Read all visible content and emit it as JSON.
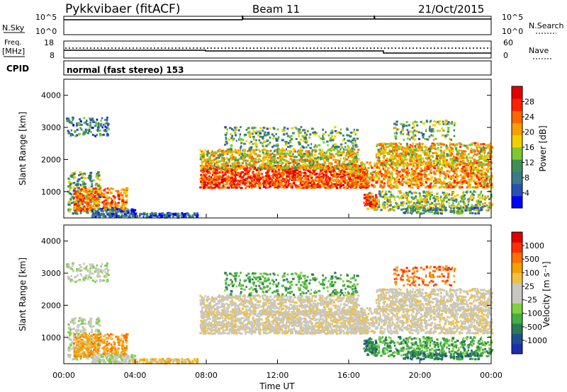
{
  "header": {
    "station": "Pykkvibaer (fitACF)",
    "beam": "Beam 11",
    "date": "21/Oct/2015"
  },
  "status_panels": {
    "nsky": {
      "label": "N.Sky",
      "ticks": [
        "10^5",
        "10^0"
      ],
      "line_value": 0.85
    },
    "nsearch": {
      "label": "N.Search",
      "ticks": [
        "10^5",
        "10^0"
      ]
    },
    "freq": {
      "label_top": "Freq.",
      "label_bottom": "[MHz]",
      "ticks": [
        "18",
        "8"
      ]
    },
    "nave": {
      "label": "Nave",
      "ticks": [
        "60",
        "0"
      ]
    },
    "cpid": {
      "label": "CPID",
      "text": "normal (fast stereo) 153"
    }
  },
  "chart_data": [
    {
      "type": "heatmap",
      "name": "power-panel",
      "xlabel": "",
      "ylabel": "Slant Range [km]",
      "xlim": [
        0,
        24
      ],
      "ylim": [
        180,
        4500
      ],
      "y_ticks": [
        1000,
        2000,
        3000,
        4000
      ],
      "colorbar": {
        "label": "Power [dB]",
        "ticks": [
          "4",
          "8",
          "12",
          "16",
          "20",
          "24",
          "28"
        ],
        "colors": [
          "#0000ff",
          "#2a4fb5",
          "#3a7a8a",
          "#3f8f55",
          "#7ec832",
          "#f0d000",
          "#f5a000",
          "#ff6600",
          "#ff2200",
          "#e00000"
        ]
      }
    },
    {
      "type": "heatmap",
      "name": "velocity-panel",
      "xlabel": "Time UT",
      "ylabel": "Slant Range [km]",
      "xlim": [
        0,
        24
      ],
      "ylim": [
        180,
        4500
      ],
      "x_ticks": [
        "00:00",
        "04:00",
        "08:00",
        "12:00",
        "16:00",
        "20:00",
        "00:00"
      ],
      "y_ticks": [
        1000,
        2000,
        3000,
        4000
      ],
      "colorbar": {
        "label": "Velocity [m s⁻¹]",
        "ticks": [
          "1000",
          "500",
          "100",
          "25",
          "-25",
          "-100",
          "-500",
          "-1000"
        ],
        "colors": [
          "#1a2fb0",
          "#1f4f8f",
          "#2a7a55",
          "#44b040",
          "#80d040",
          "#c8c8c0",
          "#c8c8c0",
          "#f0c040",
          "#f5a000",
          "#ff7000",
          "#ff3000",
          "#e00000"
        ]
      }
    }
  ]
}
